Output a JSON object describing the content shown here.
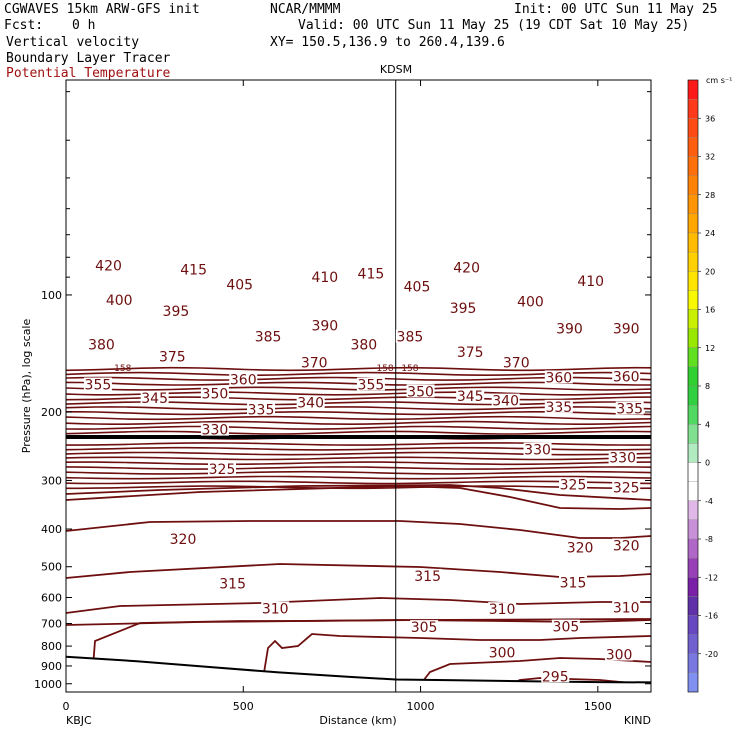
{
  "header": {
    "model": "CGWAVES 15km ARW-GFS init",
    "org": "NCAR/MMMM",
    "init": "Init: 00 UTC Sun 11 May 25",
    "fcst_label": "Fcst:",
    "fcst_value": "0 h",
    "valid": "Valid: 00 UTC Sun 11 May 25 (19 CDT Sat 10 May 25)",
    "field1": "Vertical velocity",
    "xy": "XY= 150.5,136.9 to 260.4,139.6",
    "field2": "Boundary Layer Tracer",
    "field3": "Potential Temperature"
  },
  "colors": {
    "contour": "#6e0f0f",
    "header_red": "#a01010"
  },
  "chart_data": {
    "type": "line",
    "subtype": "cross-section contour",
    "xlabel": "Distance (km)",
    "ylabel": "Pressure (hPa), log scale",
    "xlim": [
      0,
      1650
    ],
    "ylim": [
      1050,
      28
    ],
    "y_scale": "log",
    "x_ticks": [
      0,
      500,
      1000,
      1500
    ],
    "x_tick_labels": [
      "0",
      "500",
      "1000",
      "1500"
    ],
    "y_ticks": [
      100,
      200,
      300,
      400,
      500,
      600,
      700,
      800,
      900,
      1000
    ],
    "y_tick_labels": [
      "100",
      "200",
      "300",
      "400",
      "500",
      "600",
      "700",
      "800",
      "900",
      "1000"
    ],
    "start_station": "KBJC",
    "end_station": "KIND",
    "marker_label": "KDSM",
    "marker_x": 930,
    "terrain": {
      "x": [
        0,
        200,
        400,
        600,
        800,
        930,
        1100,
        1300,
        1500,
        1650
      ],
      "p": [
        852,
        875,
        905,
        935,
        960,
        975,
        980,
        985,
        990,
        992
      ]
    },
    "contour_labels": [
      {
        "text": "420",
        "x": 120,
        "p": 84
      },
      {
        "text": "415",
        "x": 360,
        "p": 86
      },
      {
        "text": "405",
        "x": 490,
        "p": 94
      },
      {
        "text": "410",
        "x": 730,
        "p": 90
      },
      {
        "text": "415",
        "x": 860,
        "p": 88
      },
      {
        "text": "420",
        "x": 1130,
        "p": 85
      },
      {
        "text": "405",
        "x": 990,
        "p": 95
      },
      {
        "text": "410",
        "x": 1480,
        "p": 92
      },
      {
        "text": "400",
        "x": 150,
        "p": 103
      },
      {
        "text": "395",
        "x": 310,
        "p": 110
      },
      {
        "text": "390",
        "x": 730,
        "p": 120
      },
      {
        "text": "395",
        "x": 1120,
        "p": 108
      },
      {
        "text": "400",
        "x": 1310,
        "p": 104
      },
      {
        "text": "390",
        "x": 1420,
        "p": 122
      },
      {
        "text": "390",
        "x": 1580,
        "p": 122
      },
      {
        "text": "380",
        "x": 100,
        "p": 134
      },
      {
        "text": "385",
        "x": 570,
        "p": 128
      },
      {
        "text": "380",
        "x": 840,
        "p": 134
      },
      {
        "text": "385",
        "x": 970,
        "p": 128
      },
      {
        "text": "375",
        "x": 300,
        "p": 144
      },
      {
        "text": "375",
        "x": 1140,
        "p": 140
      },
      {
        "text": "370",
        "x": 700,
        "p": 149
      },
      {
        "text": "370",
        "x": 1270,
        "p": 149
      },
      {
        "text": "360",
        "x": 500,
        "p": 165
      },
      {
        "text": "360",
        "x": 1390,
        "p": 163
      },
      {
        "text": "360",
        "x": 1580,
        "p": 162
      },
      {
        "text": "355",
        "x": 90,
        "p": 170
      },
      {
        "text": "355",
        "x": 860,
        "p": 170
      },
      {
        "text": "350",
        "x": 420,
        "p": 179
      },
      {
        "text": "350",
        "x": 1000,
        "p": 177
      },
      {
        "text": "345",
        "x": 250,
        "p": 184
      },
      {
        "text": "345",
        "x": 1140,
        "p": 182
      },
      {
        "text": "340",
        "x": 690,
        "p": 189
      },
      {
        "text": "340",
        "x": 1240,
        "p": 187
      },
      {
        "text": "335",
        "x": 550,
        "p": 197
      },
      {
        "text": "335",
        "x": 1390,
        "p": 194
      },
      {
        "text": "335",
        "x": 1590,
        "p": 196
      },
      {
        "text": "330",
        "x": 420,
        "p": 222
      },
      {
        "text": "330",
        "x": 1330,
        "p": 250
      },
      {
        "text": "330",
        "x": 1570,
        "p": 262
      },
      {
        "text": "325",
        "x": 440,
        "p": 280
      },
      {
        "text": "325",
        "x": 1430,
        "p": 307
      },
      {
        "text": "325",
        "x": 1580,
        "p": 313
      },
      {
        "text": "320",
        "x": 330,
        "p": 424
      },
      {
        "text": "320",
        "x": 1450,
        "p": 446
      },
      {
        "text": "320",
        "x": 1580,
        "p": 441
      },
      {
        "text": "315",
        "x": 470,
        "p": 552
      },
      {
        "text": "315",
        "x": 1020,
        "p": 528
      },
      {
        "text": "315",
        "x": 1430,
        "p": 549
      },
      {
        "text": "310",
        "x": 590,
        "p": 640
      },
      {
        "text": "310",
        "x": 1230,
        "p": 643
      },
      {
        "text": "310",
        "x": 1580,
        "p": 636
      },
      {
        "text": "305",
        "x": 1010,
        "p": 715
      },
      {
        "text": "305",
        "x": 1410,
        "p": 713
      },
      {
        "text": "300",
        "x": 1230,
        "p": 832
      },
      {
        "text": "300",
        "x": 1560,
        "p": 841
      },
      {
        "text": "295",
        "x": 1380,
        "p": 957
      }
    ],
    "tracer_labels": [
      {
        "text": "158",
        "x": 160,
        "p": 154
      },
      {
        "text": "158",
        "x": 900,
        "p": 154
      },
      {
        "text": "158",
        "x": 970,
        "p": 154
      }
    ],
    "colorbar": {
      "unit": "cm s⁻¹",
      "levels": [
        40,
        38,
        36,
        34,
        32,
        30,
        28,
        26,
        24,
        22,
        20,
        18,
        16,
        14,
        12,
        10,
        8,
        6,
        4,
        2,
        0,
        -2,
        -4,
        -6,
        -8,
        -10,
        -12,
        -14,
        -16,
        -18,
        -20,
        -22
      ],
      "tick_labels": [
        "36",
        "32",
        "28",
        "24",
        "20",
        "16",
        "12",
        "8",
        "4",
        "0",
        "-4",
        "-8",
        "-12",
        "-16",
        "-20"
      ],
      "colors": [
        "#ff1a1a",
        "#ff3a1a",
        "#ff4b14",
        "#ff5e10",
        "#ff700c",
        "#ff8208",
        "#ff9404",
        "#ffa600",
        "#ffbb00",
        "#ffd000",
        "#ffe400",
        "#f8f800",
        "#c8f000",
        "#98e800",
        "#60e020",
        "#30d030",
        "#30d040",
        "#50d860",
        "#80e090",
        "#b0ecc0",
        "#ffffff",
        "#ffffff",
        "#e0b8e8",
        "#c890d8",
        "#b068c8",
        "#9840b8",
        "#7a20a8",
        "#6030a8",
        "#6848c0",
        "#7060d0",
        "#7878e0",
        "#8090f0"
      ]
    }
  }
}
